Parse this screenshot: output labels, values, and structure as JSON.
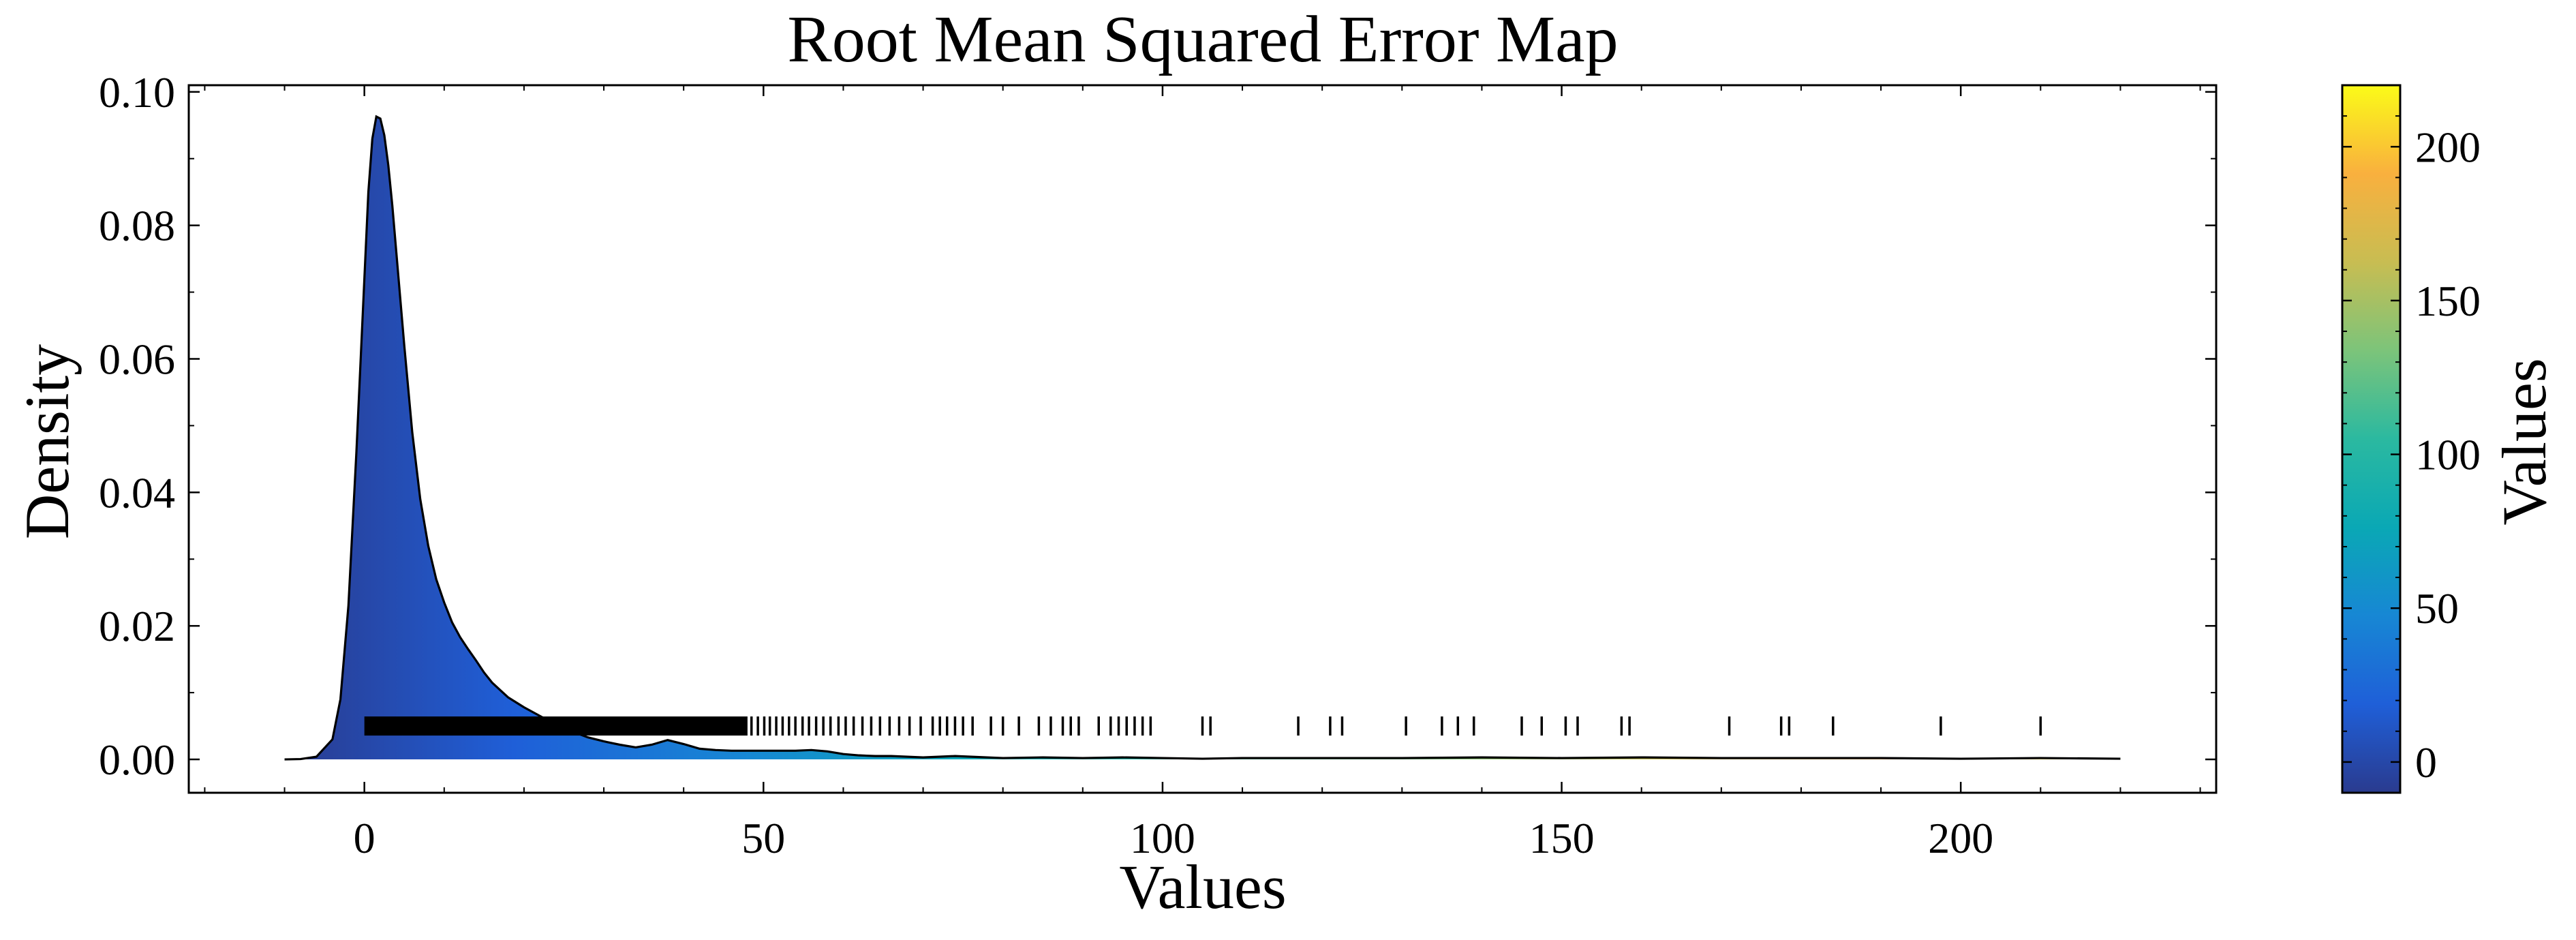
{
  "chart_data": {
    "type": "area",
    "title": "Root Mean Squared Error Map",
    "xlabel": "Values",
    "ylabel": "Density",
    "xlim": [
      -22,
      232
    ],
    "ylim": [
      -0.005,
      0.101
    ],
    "x_ticks": [
      0,
      50,
      100,
      150,
      200
    ],
    "x_tick_labels": [
      "0",
      "50",
      "100",
      "150",
      "200"
    ],
    "y_ticks": [
      0.0,
      0.02,
      0.04,
      0.06,
      0.08,
      0.1
    ],
    "y_tick_labels": [
      "0.00",
      "0.02",
      "0.04",
      "0.06",
      "0.08",
      "0.10"
    ],
    "grid": false,
    "series": [
      {
        "kind": "density",
        "x": [
          -10,
          -8,
          -6,
          -4,
          -3,
          -2,
          -1,
          0,
          0.5,
          1,
          1.5,
          2,
          2.5,
          3,
          3.5,
          4,
          5,
          6,
          7,
          8,
          9,
          10,
          11,
          12,
          13,
          14,
          15,
          16,
          18,
          20,
          22,
          24,
          26,
          28,
          30,
          32,
          34,
          36,
          38,
          40,
          42,
          44,
          46,
          48,
          50,
          52,
          54,
          56,
          58,
          60,
          62,
          64,
          66,
          68,
          70,
          72,
          74,
          76,
          78,
          80,
          85,
          90,
          95,
          100,
          105,
          110,
          120,
          130,
          140,
          150,
          160,
          170,
          180,
          190,
          200,
          210,
          220
        ],
        "y": [
          0.0,
          5e-05,
          0.0004,
          0.003,
          0.009,
          0.023,
          0.046,
          0.072,
          0.085,
          0.093,
          0.0963,
          0.096,
          0.0935,
          0.089,
          0.083,
          0.076,
          0.062,
          0.049,
          0.039,
          0.032,
          0.027,
          0.0235,
          0.0205,
          0.0183,
          0.0165,
          0.0148,
          0.013,
          0.0115,
          0.0093,
          0.0078,
          0.0065,
          0.0052,
          0.0042,
          0.0033,
          0.0027,
          0.0022,
          0.0018,
          0.0022,
          0.0029,
          0.0023,
          0.0016,
          0.0014,
          0.0013,
          0.0013,
          0.0013,
          0.0013,
          0.0013,
          0.0014,
          0.0012,
          0.0008,
          0.0006,
          0.0005,
          0.0005,
          0.0004,
          0.0003,
          0.0004,
          0.0005,
          0.0004,
          0.0003,
          0.0002,
          0.0003,
          0.0002,
          0.0003,
          0.0002,
          0.0001,
          0.0002,
          0.0002,
          0.0002,
          0.0003,
          0.0002,
          0.0003,
          0.0002,
          0.0002,
          0.0002,
          0.0001,
          0.0002,
          0.0001
        ]
      },
      {
        "kind": "rug",
        "rug_y": 0.005,
        "dense_range": [
          0,
          48
        ],
        "values": [
          48.5,
          49.3,
          50.1,
          50.8,
          51.6,
          52.4,
          53.2,
          54.0,
          54.9,
          55.7,
          56.6,
          57.5,
          58.4,
          59.4,
          60.3,
          61.3,
          62.4,
          63.5,
          64.6,
          65.8,
          67.0,
          68.3,
          69.7,
          71.2,
          72.1,
          73.0,
          74.0,
          75.0,
          76.2,
          78.5,
          80.0,
          82.0,
          84.5,
          86.0,
          87.5,
          88.5,
          89.5,
          92.0,
          93.5,
          94.5,
          95.5,
          96.5,
          97.5,
          98.5,
          105.0,
          106.0,
          117.0,
          121.0,
          122.5,
          130.5,
          135.0,
          137.0,
          139.0,
          145.0,
          147.5,
          150.5,
          152.0,
          157.5,
          158.5,
          171.0,
          177.5,
          178.5,
          184.0,
          197.5,
          210.0
        ]
      }
    ],
    "colorbar": {
      "label": "Values",
      "range": [
        -10,
        220
      ],
      "ticks": [
        0,
        50,
        100,
        150,
        200
      ],
      "tick_labels": [
        "0",
        "50",
        "100",
        "150",
        "200"
      ],
      "colors": [
        "#2a3b8f",
        "#1f5fd8",
        "#1787d4",
        "#0aa8b5",
        "#2bb9a0",
        "#7cc47a",
        "#c8bd52",
        "#f9b03e",
        "#fbfb18"
      ]
    },
    "colors": {
      "outline": "#000000",
      "rug": "#000000"
    }
  }
}
